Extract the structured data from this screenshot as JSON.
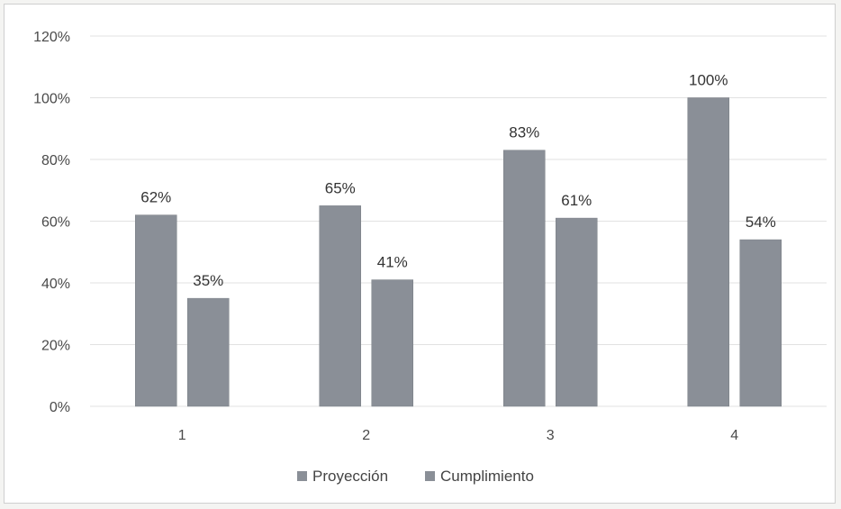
{
  "chart_data": {
    "type": "bar",
    "title": "",
    "xlabel": "",
    "ylabel": "",
    "categories": [
      "1",
      "2",
      "3",
      "4"
    ],
    "series": [
      {
        "name": "Proyección",
        "values": [
          62,
          65,
          83,
          100
        ],
        "labels": [
          "62%",
          "65%",
          "83%",
          "100%"
        ]
      },
      {
        "name": "Cumplimiento",
        "values": [
          35,
          41,
          61,
          54
        ],
        "labels": [
          "35%",
          "41%",
          "61%",
          "54%"
        ]
      }
    ],
    "ylim": [
      0,
      120
    ],
    "yticks": [
      "0%",
      "20%",
      "40%",
      "60%",
      "80%",
      "100%",
      "120%"
    ],
    "grid": true,
    "legend_position": "bottom",
    "colors": {
      "bar": "#8a8f97",
      "grid": "#e2e2e2"
    }
  }
}
